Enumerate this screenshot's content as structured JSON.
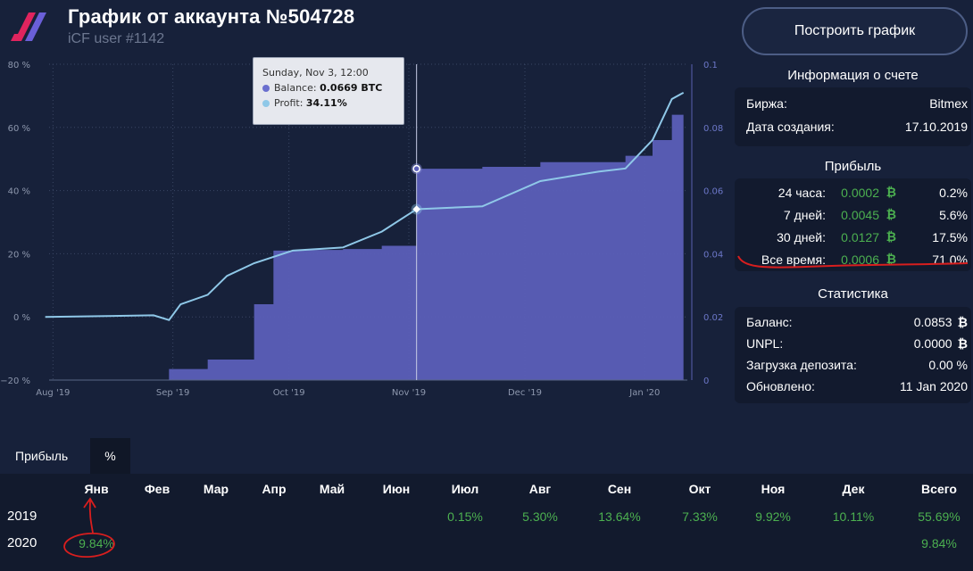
{
  "header": {
    "title": "График от аккаунта №504728",
    "subtitle": "iCF user #1142",
    "build_button": "Построить график"
  },
  "chart": {
    "left_ticks": [
      "80 %",
      "60 %",
      "40 %",
      "20 %",
      "0 %",
      "−20 %"
    ],
    "right_ticks": [
      "0.1",
      "0.08",
      "0.06",
      "0.04",
      "0.02",
      "0"
    ],
    "x_ticks": [
      "Aug '19",
      "Sep '19",
      "Oct '19",
      "Nov '19",
      "Dec '19",
      "Jan '20"
    ],
    "colors": {
      "balance": "#5b5fb8",
      "profit": "#8fc8e8"
    },
    "tooltip": {
      "date": "Sunday, Nov 3, 12:00",
      "balance_label": "Balance:",
      "balance_value": "0.0669 BTC",
      "profit_label": "Profit:",
      "profit_value": "34.11%"
    }
  },
  "chart_data": {
    "type": "area",
    "x": [
      "2019-07-30",
      "2019-08-27",
      "2019-08-31",
      "2019-09-03",
      "2019-09-10",
      "2019-09-15",
      "2019-09-22",
      "2019-09-27",
      "2019-10-02",
      "2019-10-15",
      "2019-10-25",
      "2019-11-03",
      "2019-11-20",
      "2019-12-05",
      "2019-12-20",
      "2019-12-27",
      "2020-01-03",
      "2020-01-08",
      "2020-01-11"
    ],
    "series": [
      {
        "name": "Balance",
        "axis": "right",
        "unit": "BTC",
        "values": [
          0,
          0,
          0.0035,
          0.0035,
          0.0065,
          0.0065,
          0.024,
          0.041,
          0.0412,
          0.0415,
          0.0425,
          0.0669,
          0.0675,
          0.069,
          0.069,
          0.071,
          0.076,
          0.084,
          0.085
        ]
      },
      {
        "name": "Profit",
        "axis": "left",
        "unit": "%",
        "values": [
          0,
          0.5,
          -1,
          4,
          7,
          13,
          17,
          19,
          21,
          22,
          27,
          34.11,
          35,
          43,
          46,
          47,
          56,
          69,
          71
        ]
      }
    ],
    "ylim_left": [
      -20,
      80
    ],
    "ylim_right": [
      0,
      0.1
    ],
    "grid": true
  },
  "info": {
    "heading": "Информация о счете",
    "rows": [
      {
        "label": "Биржа:",
        "value": "Bitmex"
      },
      {
        "label": "Дата создания:",
        "value": "17.10.2019"
      }
    ]
  },
  "profit": {
    "heading": "Прибыль",
    "btc_icon": "bitcoin-icon",
    "rows": [
      {
        "label": "24 часа:",
        "btc": "0.0002",
        "pct": "0.2%"
      },
      {
        "label": "7 дней:",
        "btc": "0.0045",
        "pct": "5.6%"
      },
      {
        "label": "30 дней:",
        "btc": "0.0127",
        "pct": "17.5%"
      },
      {
        "label": "Все время:",
        "btc": "0.0006",
        "pct": "71.0%"
      }
    ]
  },
  "stats": {
    "heading": "Статистика",
    "rows": [
      {
        "label": "Баланс:",
        "value": "0.0853",
        "icon": "₿"
      },
      {
        "label": "UNPL:",
        "value": "0.0000",
        "icon": "₿"
      },
      {
        "label": "Загрузка депозита:",
        "value": "0.00 %"
      },
      {
        "label": "Обновлено:",
        "value": "11 Jan 2020"
      }
    ]
  },
  "tabs": {
    "profit": "Прибыль",
    "percent": "%"
  },
  "table": {
    "headers": [
      "Янв",
      "Фев",
      "Мар",
      "Апр",
      "Май",
      "Июн",
      "Июл",
      "Авг",
      "Сен",
      "Окт",
      "Ноя",
      "Дек",
      "Всего"
    ],
    "rows": [
      {
        "year": "2019",
        "cells": [
          "",
          "",
          "",
          "",
          "",
          "",
          "0.15%",
          "5.30%",
          "13.64%",
          "7.33%",
          "9.92%",
          "10.11%",
          "55.69%"
        ]
      },
      {
        "year": "2020",
        "cells": [
          "9.84%",
          "",
          "",
          "",
          "",
          "",
          "",
          "",
          "",
          "",
          "",
          "",
          "9.84%"
        ]
      }
    ]
  },
  "annotation_color": "#d81e1e"
}
